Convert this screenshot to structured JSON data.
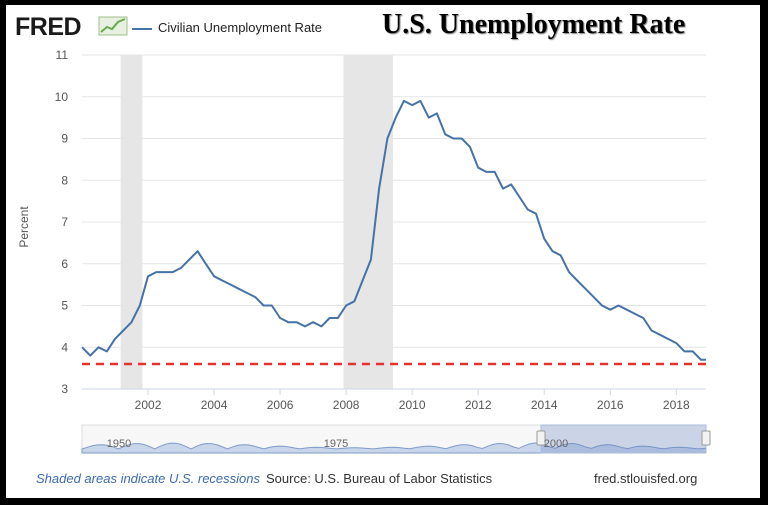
{
  "header": {
    "logo_text": "FRED",
    "legend_label": "Civilian Unemployment Rate",
    "overlay_title": "U.S. Unemployment Rate"
  },
  "footer": {
    "recession_note": "Shaded areas indicate U.S. recessions",
    "source": "Source: U.S. Bureau of Labor Statistics",
    "url": "fred.stlouisfed.org"
  },
  "colors": {
    "series": "#4572a7",
    "recession": "#e6e6e6",
    "reference_line": "#e8322f",
    "navigator_fill": "#c9d6ea"
  },
  "navigator": {
    "labels": [
      "1950",
      "1975",
      "2000"
    ]
  },
  "chart_data": {
    "type": "line",
    "title": "U.S. Unemployment Rate",
    "ylabel": "Percent",
    "xlabel": "",
    "ylim": [
      3,
      11
    ],
    "xlim": [
      2000.0,
      2018.9
    ],
    "yticks": [
      3,
      4,
      5,
      6,
      7,
      8,
      9,
      10,
      11
    ],
    "xticks": [
      2002,
      2004,
      2006,
      2008,
      2010,
      2012,
      2014,
      2016,
      2018
    ],
    "grid": true,
    "legend_position": "top-left",
    "recessions": [
      [
        2001.17,
        2001.83
      ],
      [
        2007.92,
        2009.42
      ]
    ],
    "reference_line": {
      "y": 3.6,
      "style": "dashed"
    },
    "series": [
      {
        "name": "Civilian Unemployment Rate",
        "x": [
          2000.0,
          2000.25,
          2000.5,
          2000.75,
          2001.0,
          2001.25,
          2001.5,
          2001.75,
          2002.0,
          2002.25,
          2002.5,
          2002.75,
          2003.0,
          2003.25,
          2003.5,
          2003.75,
          2004.0,
          2004.25,
          2004.5,
          2004.75,
          2005.0,
          2005.25,
          2005.5,
          2005.75,
          2006.0,
          2006.25,
          2006.5,
          2006.75,
          2007.0,
          2007.25,
          2007.5,
          2007.75,
          2008.0,
          2008.25,
          2008.5,
          2008.75,
          2009.0,
          2009.25,
          2009.5,
          2009.75,
          2010.0,
          2010.25,
          2010.5,
          2010.75,
          2011.0,
          2011.25,
          2011.5,
          2011.75,
          2012.0,
          2012.25,
          2012.5,
          2012.75,
          2013.0,
          2013.25,
          2013.5,
          2013.75,
          2014.0,
          2014.25,
          2014.5,
          2014.75,
          2015.0,
          2015.25,
          2015.5,
          2015.75,
          2016.0,
          2016.25,
          2016.5,
          2016.75,
          2017.0,
          2017.25,
          2017.5,
          2017.75,
          2018.0,
          2018.25,
          2018.5,
          2018.75,
          2018.9
        ],
        "values": [
          4.0,
          3.8,
          4.0,
          3.9,
          4.2,
          4.4,
          4.6,
          5.0,
          5.7,
          5.8,
          5.8,
          5.8,
          5.9,
          6.1,
          6.3,
          6.0,
          5.7,
          5.6,
          5.5,
          5.4,
          5.3,
          5.2,
          5.0,
          5.0,
          4.7,
          4.6,
          4.6,
          4.5,
          4.6,
          4.5,
          4.7,
          4.7,
          5.0,
          5.1,
          5.6,
          6.1,
          7.8,
          9.0,
          9.5,
          9.9,
          9.8,
          9.9,
          9.5,
          9.6,
          9.1,
          9.0,
          9.0,
          8.8,
          8.3,
          8.2,
          8.2,
          7.8,
          7.9,
          7.6,
          7.3,
          7.2,
          6.6,
          6.3,
          6.2,
          5.8,
          5.6,
          5.4,
          5.2,
          5.0,
          4.9,
          5.0,
          4.9,
          4.8,
          4.7,
          4.4,
          4.3,
          4.2,
          4.1,
          3.9,
          3.9,
          3.7,
          3.7
        ]
      }
    ]
  }
}
